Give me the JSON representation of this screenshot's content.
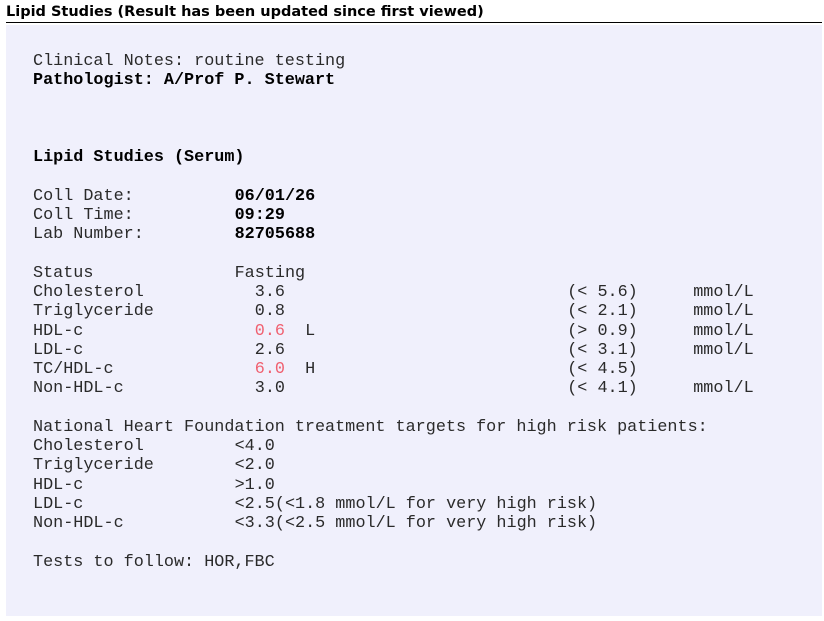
{
  "header": {
    "title": "Lipid Studies (Result has been updated since first viewed)"
  },
  "report": {
    "clinical_notes": "Clinical Notes: routine testing",
    "pathologist": "Pathologist: A/Prof P. Stewart",
    "section_title": "Lipid Studies (Serum)",
    "collection": [
      {
        "label": "Coll Date:",
        "value": "06/01/26"
      },
      {
        "label": "Coll Time:",
        "value": "09:29"
      },
      {
        "label": "Lab Number:",
        "value": "82705688"
      }
    ],
    "status": {
      "label": "Status",
      "value": "Fasting"
    },
    "results": [
      {
        "name": "Cholesterol",
        "value": "3.6",
        "flag": "",
        "range": "(< 5.6)",
        "unit": "mmol/L",
        "abnormal": false
      },
      {
        "name": "Triglyceride",
        "value": "0.8",
        "flag": "",
        "range": "(< 2.1)",
        "unit": "mmol/L",
        "abnormal": false
      },
      {
        "name": "HDL-c",
        "value": "0.6",
        "flag": "L",
        "range": "(> 0.9)",
        "unit": "mmol/L",
        "abnormal": true
      },
      {
        "name": "LDL-c",
        "value": "2.6",
        "flag": "",
        "range": "(< 3.1)",
        "unit": "mmol/L",
        "abnormal": false
      },
      {
        "name": "TC/HDL-c",
        "value": "6.0",
        "flag": "H",
        "range": "(< 4.5)",
        "unit": "",
        "abnormal": true
      },
      {
        "name": "Non-HDL-c",
        "value": "3.0",
        "flag": "",
        "range": "(< 4.1)",
        "unit": "mmol/L",
        "abnormal": false
      }
    ],
    "targets_heading": "National Heart Foundation treatment targets for high risk patients:",
    "targets": [
      {
        "name": "Cholesterol",
        "value": "<4.0"
      },
      {
        "name": "Triglyceride",
        "value": "<2.0"
      },
      {
        "name": "HDL-c",
        "value": ">1.0"
      },
      {
        "name": "LDL-c",
        "value": "<2.5(<1.8 mmol/L for very high risk)"
      },
      {
        "name": "Non-HDL-c",
        "value": "<3.3(<2.5 mmol/L for very high risk)"
      }
    ],
    "tests_to_follow": "Tests to follow: HOR,FBC"
  },
  "colors": {
    "abnormal": "#f06070",
    "panel_bg": "#f0f0fc"
  }
}
